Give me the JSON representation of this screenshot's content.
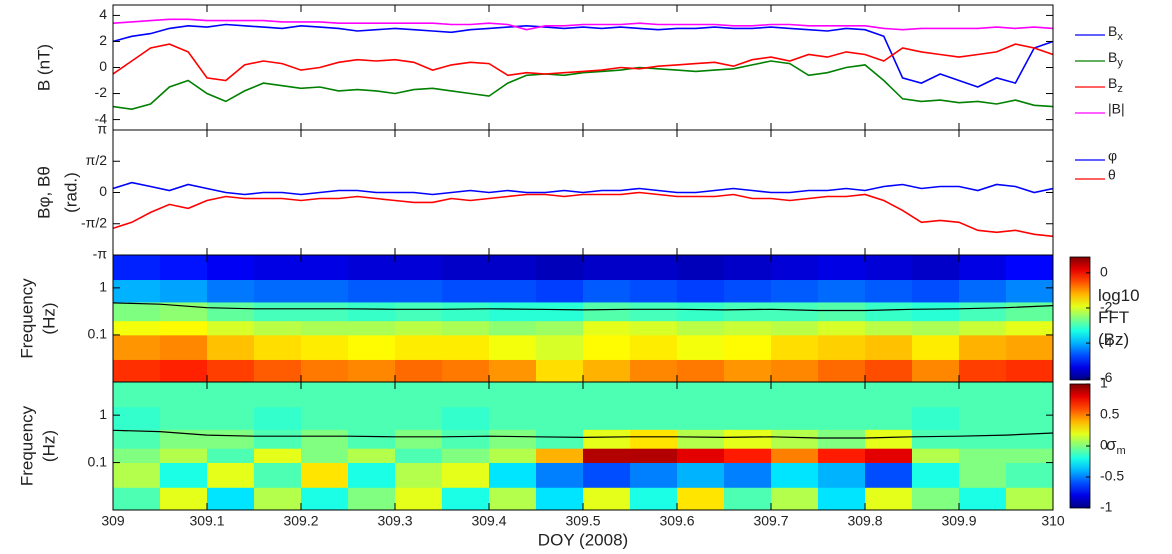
{
  "chart_data": [
    {
      "type": "line",
      "ylabel": [
        "B (nT)"
      ],
      "legend": "outside-right",
      "xlim": [
        309,
        310
      ],
      "ylim": [
        -4.8,
        4.8
      ],
      "yticks": [
        -4,
        -2,
        0,
        2,
        4
      ],
      "x": [
        309,
        309.02,
        309.04,
        309.06,
        309.08,
        309.1,
        309.12,
        309.14,
        309.16,
        309.18,
        309.2,
        309.22,
        309.24,
        309.26,
        309.28,
        309.3,
        309.32,
        309.34,
        309.36,
        309.38,
        309.4,
        309.42,
        309.44,
        309.46,
        309.48,
        309.5,
        309.52,
        309.54,
        309.56,
        309.58,
        309.6,
        309.62,
        309.64,
        309.66,
        309.68,
        309.7,
        309.72,
        309.74,
        309.76,
        309.78,
        309.8,
        309.82,
        309.84,
        309.86,
        309.88,
        309.9,
        309.92,
        309.94,
        309.96,
        309.98,
        310
      ],
      "series": [
        {
          "name": "Bx",
          "color": "#0000ff",
          "values": [
            2.0,
            2.4,
            2.6,
            3.0,
            3.2,
            3.1,
            3.3,
            3.2,
            3.1,
            3.0,
            3.2,
            3.1,
            3.0,
            2.8,
            2.9,
            3.0,
            2.9,
            2.8,
            2.7,
            2.9,
            3.0,
            3.1,
            3.2,
            3.1,
            3.0,
            3.1,
            3.0,
            3.1,
            3.0,
            2.9,
            3.0,
            3.0,
            3.1,
            3.0,
            3.0,
            3.1,
            3.0,
            2.9,
            2.8,
            3.0,
            2.9,
            2.4,
            -0.8,
            -1.2,
            -0.5,
            -1.0,
            -1.5,
            -0.8,
            -1.2,
            1.5,
            2.0
          ]
        },
        {
          "name": "By",
          "color": "#008000",
          "values": [
            -3.0,
            -3.2,
            -2.8,
            -1.5,
            -1.0,
            -2.0,
            -2.6,
            -1.8,
            -1.2,
            -1.4,
            -1.6,
            -1.5,
            -1.8,
            -1.7,
            -1.8,
            -2.0,
            -1.7,
            -1.6,
            -1.8,
            -2.0,
            -2.2,
            -1.2,
            -0.6,
            -0.5,
            -0.6,
            -0.4,
            -0.3,
            -0.2,
            0.0,
            -0.1,
            -0.2,
            -0.3,
            -0.2,
            -0.1,
            0.2,
            0.5,
            0.3,
            -0.6,
            -0.4,
            0.0,
            0.2,
            -1.0,
            -2.4,
            -2.6,
            -2.5,
            -2.7,
            -2.6,
            -2.8,
            -2.5,
            -2.9,
            -3.0
          ]
        },
        {
          "name": "Bz",
          "color": "#ff0000",
          "values": [
            -0.5,
            0.5,
            1.5,
            1.8,
            1.2,
            -0.8,
            -1.0,
            0.2,
            0.5,
            0.3,
            -0.2,
            0.0,
            0.4,
            0.6,
            0.5,
            0.6,
            0.4,
            -0.2,
            0.2,
            0.4,
            0.3,
            -0.6,
            -0.4,
            -0.5,
            -0.4,
            -0.3,
            -0.2,
            0.0,
            -0.1,
            0.1,
            0.2,
            0.3,
            0.4,
            0.1,
            0.6,
            0.8,
            0.5,
            1.0,
            0.8,
            1.2,
            1.0,
            0.5,
            1.5,
            1.2,
            1.0,
            0.8,
            1.0,
            1.2,
            1.8,
            1.5,
            1.0
          ]
        },
        {
          "name": "|B|",
          "color": "#ff00ff",
          "values": [
            3.4,
            3.5,
            3.6,
            3.7,
            3.7,
            3.6,
            3.6,
            3.6,
            3.6,
            3.5,
            3.5,
            3.5,
            3.4,
            3.4,
            3.4,
            3.4,
            3.4,
            3.4,
            3.3,
            3.3,
            3.4,
            3.3,
            2.9,
            3.2,
            3.2,
            3.3,
            3.3,
            3.3,
            3.4,
            3.3,
            3.3,
            3.3,
            3.3,
            3.2,
            3.2,
            3.3,
            3.3,
            3.2,
            3.2,
            3.2,
            3.2,
            3.0,
            2.9,
            3.0,
            3.0,
            3.0,
            3.0,
            3.1,
            3.0,
            3.1,
            3.0
          ]
        }
      ]
    },
    {
      "type": "line",
      "ylabel": [
        "Bφ, Bθ",
        "(rad.)"
      ],
      "legend": "outside-right",
      "xlim": [
        309,
        310
      ],
      "ylim": [
        -3.1416,
        3.1416
      ],
      "yticks": [
        {
          "value": -3.1416,
          "label": "-π"
        },
        {
          "value": -1.5708,
          "label": "-π/2"
        },
        0,
        {
          "value": 1.5708,
          "label": "π/2"
        },
        {
          "value": 3.1416,
          "label": "π"
        }
      ],
      "x": [
        309,
        309.02,
        309.04,
        309.06,
        309.08,
        309.1,
        309.12,
        309.14,
        309.16,
        309.18,
        309.2,
        309.22,
        309.24,
        309.26,
        309.28,
        309.3,
        309.32,
        309.34,
        309.36,
        309.38,
        309.4,
        309.42,
        309.44,
        309.46,
        309.48,
        309.5,
        309.52,
        309.54,
        309.56,
        309.58,
        309.6,
        309.62,
        309.64,
        309.66,
        309.68,
        309.7,
        309.72,
        309.74,
        309.76,
        309.78,
        309.8,
        309.82,
        309.84,
        309.86,
        309.88,
        309.9,
        309.92,
        309.94,
        309.96,
        309.98,
        310
      ],
      "series": [
        {
          "name": "φ",
          "color": "#0000ff",
          "values": [
            0.2,
            0.5,
            0.3,
            0.1,
            0.4,
            0.2,
            0.0,
            -0.1,
            0.0,
            0.0,
            -0.1,
            0.0,
            0.1,
            0.1,
            0.0,
            0.0,
            0.0,
            -0.1,
            0.0,
            0.1,
            0.0,
            0.1,
            0.0,
            0.0,
            0.1,
            0.0,
            0.1,
            0.1,
            0.2,
            0.1,
            0.0,
            0.0,
            0.1,
            0.2,
            0.1,
            0.0,
            0.0,
            0.1,
            0.1,
            0.2,
            0.1,
            0.3,
            0.4,
            0.2,
            0.3,
            0.3,
            0.1,
            0.4,
            0.3,
            0.0,
            0.2
          ]
        },
        {
          "name": "θ",
          "color": "#ff0000",
          "values": [
            -1.8,
            -1.5,
            -1.0,
            -0.6,
            -0.8,
            -0.4,
            -0.2,
            -0.3,
            -0.3,
            -0.3,
            -0.4,
            -0.3,
            -0.3,
            -0.2,
            -0.3,
            -0.4,
            -0.5,
            -0.5,
            -0.3,
            -0.4,
            -0.3,
            -0.2,
            -0.1,
            -0.1,
            -0.2,
            -0.1,
            -0.1,
            -0.1,
            0.0,
            -0.1,
            -0.2,
            -0.2,
            -0.2,
            -0.1,
            -0.3,
            -0.3,
            -0.4,
            -0.3,
            -0.2,
            -0.2,
            -0.1,
            -0.4,
            -0.9,
            -1.5,
            -1.4,
            -1.5,
            -1.9,
            -2.0,
            -1.9,
            -2.1,
            -2.2
          ]
        }
      ]
    },
    {
      "type": "heatmap",
      "ylabel": [
        "Frequency",
        "(Hz)"
      ],
      "log_y": true,
      "colormap": "jet",
      "xlim": [
        309,
        310
      ],
      "ylim": [
        0.01,
        5
      ],
      "yticks": [
        0.1,
        1
      ],
      "x_bins": [
        309,
        309.05,
        309.1,
        309.15,
        309.2,
        309.25,
        309.3,
        309.35,
        309.4,
        309.45,
        309.5,
        309.55,
        309.6,
        309.65,
        309.7,
        309.75,
        309.8,
        309.85,
        309.9,
        309.95,
        310
      ],
      "y_bins": [
        0.01,
        0.03,
        0.1,
        0.2,
        0.5,
        1.5,
        5
      ],
      "z": [
        [
          -0.3,
          -0.2,
          -0.4,
          -0.6,
          -0.8,
          -0.9,
          -0.7,
          -0.8,
          -1.0,
          -1.5,
          -1.2,
          -0.9,
          -0.8,
          -1.0,
          -0.9,
          -0.7,
          -0.5,
          -0.9,
          -0.4,
          -0.3
        ],
        [
          -1.0,
          -0.9,
          -1.3,
          -1.5,
          -1.6,
          -1.7,
          -1.6,
          -1.6,
          -1.8,
          -2.0,
          -1.7,
          -1.6,
          -1.8,
          -1.7,
          -1.5,
          -1.4,
          -1.3,
          -1.6,
          -1.2,
          -1.1
        ],
        [
          -1.8,
          -1.7,
          -2.0,
          -2.2,
          -2.3,
          -2.3,
          -2.2,
          -2.3,
          -2.5,
          -2.4,
          -1.9,
          -2.0,
          -2.2,
          -2.1,
          -2.2,
          -2.0,
          -2.2,
          -2.3,
          -2.1,
          -1.9
        ],
        [
          -2.6,
          -2.5,
          -2.8,
          -3.0,
          -3.0,
          -3.1,
          -3.0,
          -3.1,
          -3.2,
          -3.2,
          -2.9,
          -3.0,
          -3.1,
          -3.0,
          -3.0,
          -2.9,
          -3.1,
          -3.2,
          -3.0,
          -2.8
        ],
        [
          -4.0,
          -4.1,
          -4.4,
          -4.5,
          -4.5,
          -4.6,
          -4.6,
          -4.7,
          -4.7,
          -4.8,
          -4.6,
          -4.7,
          -4.8,
          -4.7,
          -4.6,
          -4.5,
          -4.6,
          -4.7,
          -4.5,
          -4.3
        ],
        [
          -5.0,
          -5.1,
          -5.3,
          -5.4,
          -5.4,
          -5.5,
          -5.5,
          -5.6,
          -5.6,
          -5.7,
          -5.6,
          -5.6,
          -5.7,
          -5.6,
          -5.5,
          -5.4,
          -5.5,
          -5.6,
          -5.4,
          -5.2
        ]
      ],
      "clim": [
        -6.1,
        0.9
      ],
      "cticks": [
        -6,
        -4,
        -2,
        0
      ],
      "colorbar_label": [
        "log10",
        "FFT",
        "(Bz)"
      ],
      "line": {
        "color": "#000000",
        "x": [
          309,
          309.05,
          309.1,
          309.15,
          309.2,
          309.25,
          309.3,
          309.35,
          309.4,
          309.45,
          309.5,
          309.55,
          309.6,
          309.65,
          309.7,
          309.75,
          309.8,
          309.85,
          309.9,
          309.95,
          310
        ],
        "values": [
          0.48,
          0.45,
          0.38,
          0.36,
          0.36,
          0.36,
          0.35,
          0.35,
          0.36,
          0.35,
          0.34,
          0.35,
          0.35,
          0.34,
          0.35,
          0.33,
          0.33,
          0.35,
          0.36,
          0.38,
          0.42
        ]
      }
    },
    {
      "type": "heatmap",
      "ylabel": [
        "Frequency",
        "(Hz)"
      ],
      "log_y": true,
      "colormap": "jet",
      "xlim": [
        309,
        310
      ],
      "ylim": [
        0.01,
        5
      ],
      "yticks": [
        0.1,
        1
      ],
      "xticks": [
        309,
        309.1,
        309.2,
        309.3,
        309.4,
        309.5,
        309.6,
        309.7,
        309.8,
        309.9,
        310
      ],
      "xlabel": "DOY (2008)",
      "x_bins": [
        309,
        309.05,
        309.1,
        309.15,
        309.2,
        309.25,
        309.3,
        309.35,
        309.4,
        309.45,
        309.5,
        309.55,
        309.6,
        309.65,
        309.7,
        309.75,
        309.8,
        309.85,
        309.9,
        309.95,
        310
      ],
      "y_bins": [
        0.01,
        0.03,
        0.1,
        0.2,
        0.5,
        1.5,
        5
      ],
      "z": [
        [
          -0.1,
          0.2,
          -0.3,
          0.1,
          -0.2,
          0.0,
          0.2,
          -0.2,
          0.1,
          -0.3,
          0.2,
          -0.2,
          0.3,
          -0.1,
          0.1,
          -0.3,
          0.2,
          0.0,
          -0.2,
          0.1
        ],
        [
          0.1,
          -0.2,
          0.2,
          -0.1,
          0.3,
          -0.2,
          0.1,
          0.2,
          -0.3,
          -0.5,
          -0.6,
          -0.5,
          -0.4,
          -0.5,
          -0.3,
          -0.4,
          -0.6,
          -0.2,
          0.0,
          -0.1
        ],
        [
          0.0,
          0.1,
          -0.1,
          0.2,
          0.0,
          0.1,
          -0.1,
          0.0,
          0.1,
          0.4,
          0.9,
          0.9,
          0.8,
          0.7,
          0.5,
          0.7,
          0.8,
          0.1,
          0.0,
          0.0
        ],
        [
          -0.1,
          0.0,
          0.0,
          -0.1,
          0.0,
          -0.1,
          0.0,
          -0.1,
          0.0,
          -0.1,
          0.2,
          0.3,
          0.1,
          0.2,
          0.1,
          0.0,
          0.2,
          -0.1,
          -0.1,
          -0.1
        ],
        [
          -0.15,
          -0.1,
          -0.1,
          -0.15,
          -0.1,
          -0.1,
          -0.1,
          -0.15,
          -0.1,
          -0.1,
          -0.1,
          -0.1,
          -0.1,
          -0.1,
          -0.1,
          -0.1,
          -0.1,
          -0.15,
          -0.1,
          -0.1
        ],
        [
          -0.1,
          -0.1,
          -0.1,
          -0.1,
          -0.1,
          -0.1,
          -0.1,
          -0.1,
          -0.1,
          -0.1,
          -0.1,
          -0.1,
          -0.1,
          -0.1,
          -0.1,
          -0.1,
          -0.1,
          -0.1,
          -0.1,
          -0.1
        ]
      ],
      "clim": [
        -1,
        1
      ],
      "cticks": [
        -1,
        -0.5,
        0,
        0.5,
        1
      ],
      "colorbar_label": [
        "σm"
      ],
      "line": {
        "color": "#000000",
        "x": [
          309,
          309.05,
          309.1,
          309.15,
          309.2,
          309.25,
          309.3,
          309.35,
          309.4,
          309.45,
          309.5,
          309.55,
          309.6,
          309.65,
          309.7,
          309.75,
          309.8,
          309.85,
          309.9,
          309.95,
          310
        ],
        "values": [
          0.48,
          0.45,
          0.38,
          0.36,
          0.36,
          0.36,
          0.35,
          0.35,
          0.36,
          0.35,
          0.34,
          0.35,
          0.35,
          0.34,
          0.35,
          0.33,
          0.33,
          0.35,
          0.36,
          0.38,
          0.42
        ]
      }
    }
  ]
}
